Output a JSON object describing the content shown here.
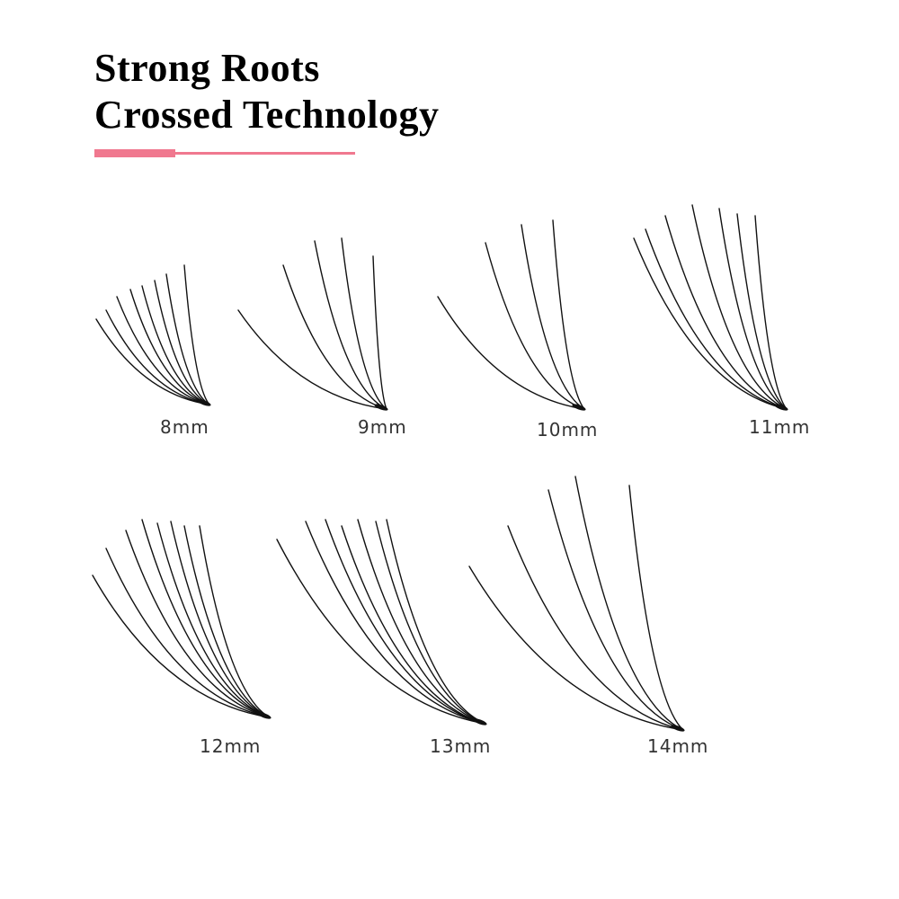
{
  "title": {
    "line1": "Strong Roots",
    "line2": "Crossed Technology"
  },
  "colors": {
    "accent": "#f0788f",
    "lash": "#111111",
    "text": "#333333"
  },
  "lashes": [
    {
      "label": "8mm"
    },
    {
      "label": "9mm"
    },
    {
      "label": "10mm"
    },
    {
      "label": "11mm"
    },
    {
      "label": "12mm"
    },
    {
      "label": "13mm"
    },
    {
      "label": "14mm"
    }
  ]
}
